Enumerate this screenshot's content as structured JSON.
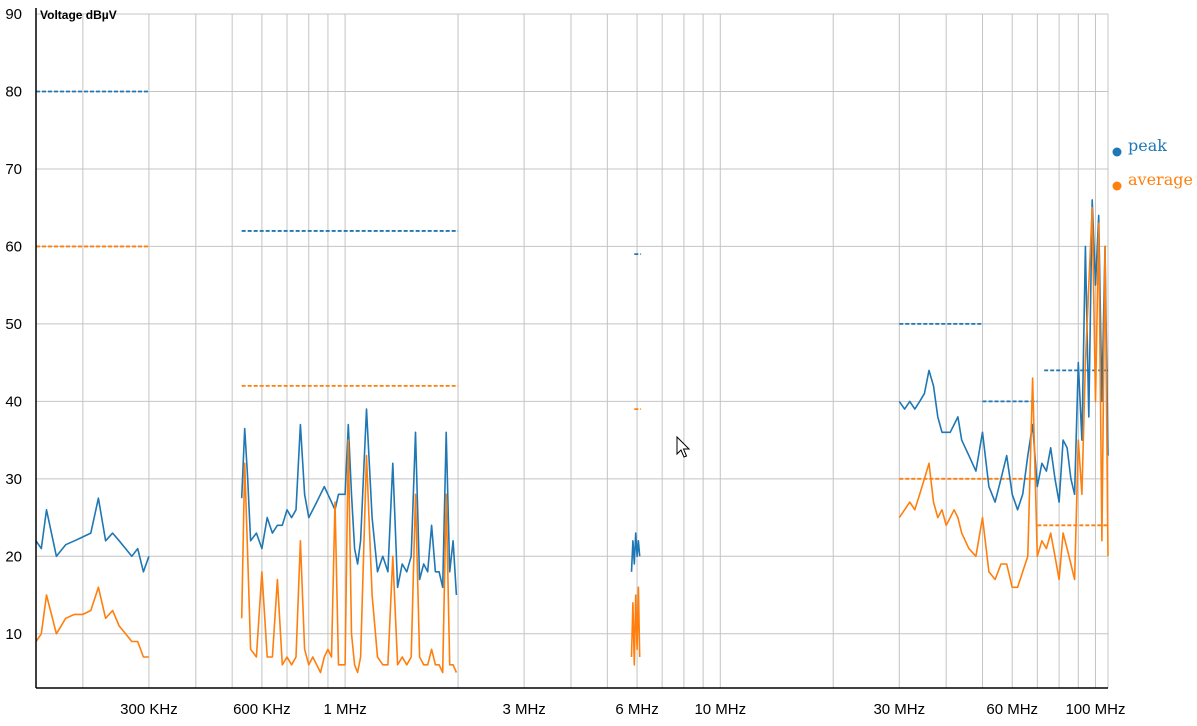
{
  "chart_data": {
    "type": "line",
    "ylabel": "Voltage dBµV",
    "x_scale": "log",
    "xlim_hz": [
      150000,
      108000000
    ],
    "ylim": [
      3,
      90
    ],
    "y_ticks": [
      10,
      20,
      30,
      40,
      50,
      60,
      70,
      80,
      90
    ],
    "x_ticks": [
      {
        "label": "300 KHz",
        "hz": 300000
      },
      {
        "label": "600 KHz",
        "hz": 600000
      },
      {
        "label": "1 MHz",
        "hz": 1000000
      },
      {
        "label": "3 MHz",
        "hz": 3000000
      },
      {
        "label": "6 MHz",
        "hz": 6000000
      },
      {
        "label": "10 MHz",
        "hz": 10000000
      },
      {
        "label": "30 MHz",
        "hz": 30000000
      },
      {
        "label": "60 MHz",
        "hz": 60000000
      },
      {
        "label": "100 MHz",
        "hz": 100000000
      }
    ],
    "grid": true,
    "legend_position": "right",
    "series": [
      {
        "name": "peak",
        "color": "#1f77b4",
        "segments": [
          {
            "x_hz": [
              150000,
              155000,
              160000,
              170000,
              180000,
              190000,
              200000,
              210000,
              220000,
              230000,
              240000,
              250000,
              260000,
              270000,
              280000,
              290000,
              300000
            ],
            "y": [
              22,
              21,
              26,
              20,
              21.5,
              22,
              22.5,
              23,
              27.5,
              22,
              23,
              22,
              21,
              20,
              21,
              18,
              20
            ]
          },
          {
            "x_hz": [
              530000,
              540000,
              550000,
              560000,
              580000,
              600000,
              620000,
              640000,
              660000,
              680000,
              700000,
              720000,
              740000,
              760000,
              780000,
              800000,
              820000,
              840000,
              860000,
              880000,
              900000,
              920000,
              940000,
              960000,
              980000,
              1000000,
              1020000,
              1040000,
              1060000,
              1080000,
              1100000,
              1140000,
              1180000,
              1220000,
              1260000,
              1300000,
              1340000,
              1380000,
              1420000,
              1460000,
              1500000,
              1540000,
              1580000,
              1620000,
              1660000,
              1700000,
              1740000,
              1780000,
              1820000,
              1860000,
              1900000,
              1940000,
              1980000
            ],
            "y": [
              27.5,
              36.5,
              30,
              22,
              23,
              21,
              25,
              23,
              24,
              24,
              26,
              25,
              26,
              37,
              28,
              25,
              26,
              27,
              28,
              29,
              28,
              27,
              26,
              28,
              28,
              28,
              37,
              28,
              21,
              19,
              22,
              39,
              25,
              18,
              20,
              18,
              32,
              16,
              19,
              18,
              20,
              36,
              17,
              19,
              18,
              24,
              18,
              18,
              16,
              36,
              18,
              22,
              15
            ]
          },
          {
            "x_hz": [
              5800000,
              5850000,
              5900000,
              5950000,
              6000000,
              6050000,
              6100000
            ],
            "y": [
              18,
              22,
              19,
              23,
              20,
              22,
              20
            ]
          },
          {
            "x_hz": [
              30000000,
              31000000,
              32000000,
              33000000,
              34000000,
              35000000,
              36000000,
              37000000,
              38000000,
              39000000,
              40000000,
              41000000,
              42000000,
              43000000,
              44000000,
              46000000,
              48000000,
              50000000,
              52000000,
              54000000,
              56000000,
              58000000,
              60000000,
              62000000,
              64000000,
              66000000,
              68000000,
              70000000,
              72000000,
              74000000,
              76000000,
              78000000,
              80000000,
              82000000,
              84000000,
              86000000,
              88000000,
              90000000,
              92000000,
              94000000,
              96000000,
              98000000,
              100000000,
              102000000,
              104000000,
              106000000,
              108000000
            ],
            "y": [
              40,
              39,
              40,
              39,
              40,
              41,
              44,
              42,
              38,
              36,
              36,
              36,
              37,
              38,
              35,
              33,
              31,
              36,
              29,
              27,
              30,
              33,
              28,
              26,
              28,
              33,
              37,
              29,
              32,
              31,
              34,
              30,
              27,
              35,
              34,
              30,
              28,
              45,
              35,
              60,
              38,
              66,
              55,
              64,
              40,
              60,
              33
            ]
          }
        ]
      },
      {
        "name": "average",
        "color": "#ff7f0e",
        "segments": [
          {
            "x_hz": [
              150000,
              155000,
              160000,
              170000,
              180000,
              190000,
              200000,
              210000,
              220000,
              230000,
              240000,
              250000,
              260000,
              270000,
              280000,
              290000,
              300000
            ],
            "y": [
              9,
              10,
              15,
              10,
              12,
              12.5,
              12.5,
              13,
              16,
              12,
              13,
              11,
              10,
              9,
              9,
              7,
              7
            ]
          },
          {
            "x_hz": [
              530000,
              540000,
              550000,
              560000,
              580000,
              600000,
              620000,
              640000,
              660000,
              680000,
              700000,
              720000,
              740000,
              760000,
              780000,
              800000,
              820000,
              840000,
              860000,
              880000,
              900000,
              920000,
              940000,
              960000,
              980000,
              1000000,
              1020000,
              1040000,
              1060000,
              1080000,
              1100000,
              1140000,
              1180000,
              1220000,
              1260000,
              1300000,
              1340000,
              1380000,
              1420000,
              1460000,
              1500000,
              1540000,
              1580000,
              1620000,
              1660000,
              1700000,
              1740000,
              1780000,
              1820000,
              1860000,
              1900000,
              1940000,
              1980000
            ],
            "y": [
              12,
              32,
              20,
              8,
              7,
              18,
              7,
              7,
              17,
              6,
              7,
              6,
              7,
              22,
              8,
              6,
              7,
              6,
              5,
              7,
              8,
              7,
              27,
              6,
              6,
              6,
              35,
              10,
              6,
              5,
              7,
              33,
              15,
              7,
              6,
              6,
              20,
              6,
              7,
              6,
              7,
              28,
              7,
              6,
              6,
              8,
              6,
              6,
              5,
              28,
              6,
              6,
              5
            ]
          },
          {
            "x_hz": [
              5800000,
              5850000,
              5900000,
              5950000,
              6000000,
              6050000,
              6100000
            ],
            "y": [
              7,
              14,
              6,
              15,
              8,
              16,
              7
            ]
          },
          {
            "x_hz": [
              30000000,
              31000000,
              32000000,
              33000000,
              34000000,
              35000000,
              36000000,
              37000000,
              38000000,
              39000000,
              40000000,
              41000000,
              42000000,
              43000000,
              44000000,
              46000000,
              48000000,
              50000000,
              52000000,
              54000000,
              56000000,
              58000000,
              60000000,
              62000000,
              64000000,
              66000000,
              68000000,
              70000000,
              72000000,
              74000000,
              76000000,
              78000000,
              80000000,
              82000000,
              84000000,
              86000000,
              88000000,
              90000000,
              92000000,
              94000000,
              96000000,
              98000000,
              100000000,
              102000000,
              104000000,
              106000000,
              108000000
            ],
            "y": [
              25,
              26,
              27,
              26,
              28,
              30,
              32,
              27,
              25,
              26,
              24,
              25,
              26,
              25,
              23,
              21,
              20,
              25,
              18,
              17,
              19,
              19,
              16,
              16,
              18,
              20,
              43,
              20,
              22,
              21,
              23,
              20,
              17,
              23,
              21,
              19,
              17,
              35,
              28,
              45,
              55,
              65,
              40,
              63,
              22,
              60,
              20
            ]
          }
        ]
      }
    ],
    "limit_lines": [
      {
        "color": "#1f77b4",
        "x_hz": [
          150000,
          300000
        ],
        "y": 80
      },
      {
        "color": "#ff7f0e",
        "x_hz": [
          150000,
          300000
        ],
        "y": 60
      },
      {
        "color": "#1f77b4",
        "x_hz": [
          530000,
          2000000
        ],
        "y": 62
      },
      {
        "color": "#ff7f0e",
        "x_hz": [
          530000,
          2000000
        ],
        "y": 42
      },
      {
        "color": "#1f77b4",
        "x_hz": [
          5900000,
          6150000
        ],
        "y": 59
      },
      {
        "color": "#ff7f0e",
        "x_hz": [
          5900000,
          6150000
        ],
        "y": 39
      },
      {
        "color": "#1f77b4",
        "x_hz": [
          30000000,
          50000000
        ],
        "y": 50
      },
      {
        "color": "#ff7f0e",
        "x_hz": [
          30000000,
          50000000
        ],
        "y": 30
      },
      {
        "color": "#1f77b4",
        "x_hz": [
          50000000,
          70000000
        ],
        "y": 40
      },
      {
        "color": "#ff7f0e",
        "x_hz": [
          50000000,
          70000000
        ],
        "y": 30
      },
      {
        "color": "#1f77b4",
        "x_hz": [
          73000000,
          108000000
        ],
        "y": 44
      },
      {
        "color": "#ff7f0e",
        "x_hz": [
          70000000,
          108000000
        ],
        "y": 24
      }
    ]
  }
}
